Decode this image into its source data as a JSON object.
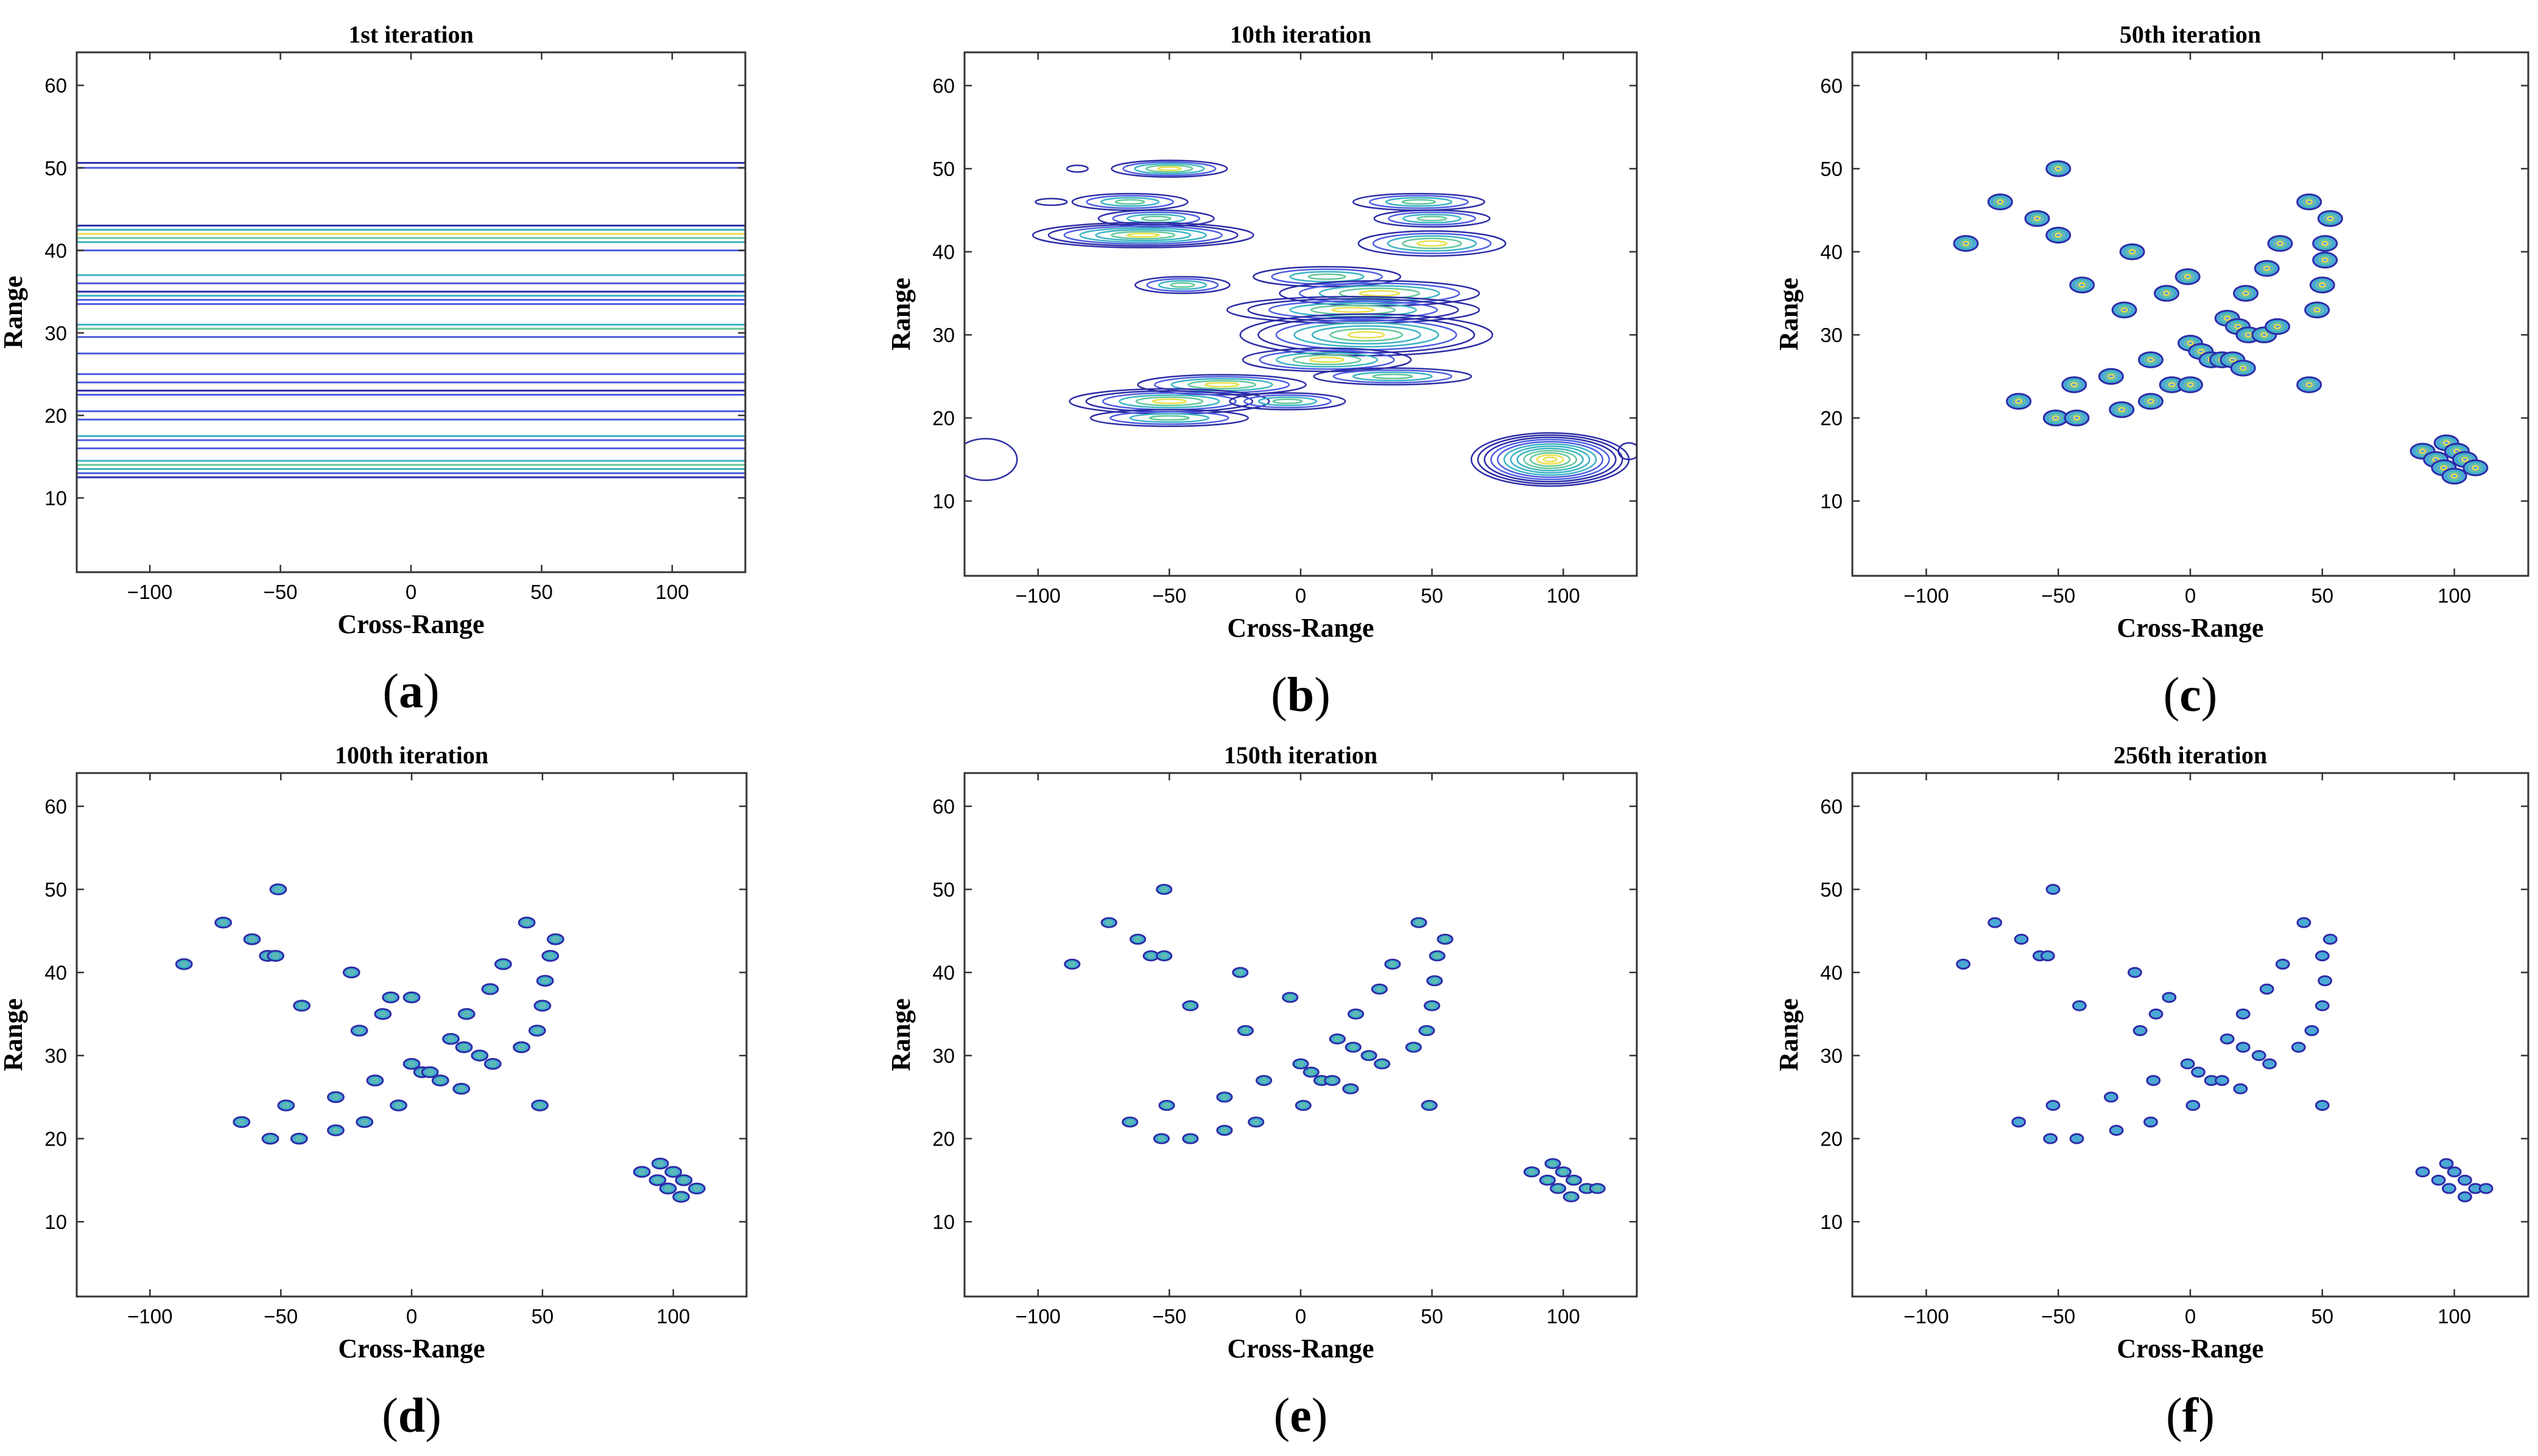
{
  "figure": {
    "x_axis_label": "Cross-Range",
    "y_axis_label": "Range",
    "x_ticks": [
      -100,
      -50,
      0,
      50,
      100
    ],
    "y_ticks": [
      10,
      20,
      30,
      40,
      50,
      60
    ],
    "xlim": [
      -128,
      128
    ],
    "ylim": [
      1,
      64
    ],
    "colors": {
      "dark": "#2c2ca6",
      "blue": "#4d5ce0",
      "teal": "#3bb3c3",
      "green": "#64c79a",
      "yellow": "#e8e04a",
      "frame": "#333333"
    }
  },
  "chart_data": [
    {
      "id": "a",
      "type": "contour",
      "title": "1st iteration",
      "caption_letter": "a",
      "xlabel": "Cross-Range",
      "ylabel": "Range",
      "xlim": [
        -128,
        128
      ],
      "ylim": [
        1,
        64
      ],
      "horizontal_lines": [
        {
          "y": 50.6,
          "c": "dark"
        },
        {
          "y": 50.0,
          "c": "blue"
        },
        {
          "y": 43.0,
          "c": "dark"
        },
        {
          "y": 42.5,
          "c": "teal"
        },
        {
          "y": 42.0,
          "c": "yellow"
        },
        {
          "y": 41.5,
          "c": "green"
        },
        {
          "y": 41.0,
          "c": "teal"
        },
        {
          "y": 40.0,
          "c": "blue"
        },
        {
          "y": 37.0,
          "c": "teal"
        },
        {
          "y": 36.0,
          "c": "blue"
        },
        {
          "y": 35.0,
          "c": "dark"
        },
        {
          "y": 34.5,
          "c": "teal"
        },
        {
          "y": 34.0,
          "c": "blue"
        },
        {
          "y": 33.5,
          "c": "blue"
        },
        {
          "y": 31.0,
          "c": "teal"
        },
        {
          "y": 30.5,
          "c": "green"
        },
        {
          "y": 29.5,
          "c": "blue"
        },
        {
          "y": 27.5,
          "c": "blue"
        },
        {
          "y": 25.0,
          "c": "blue"
        },
        {
          "y": 24.0,
          "c": "blue"
        },
        {
          "y": 23.0,
          "c": "dark"
        },
        {
          "y": 22.5,
          "c": "blue"
        },
        {
          "y": 20.5,
          "c": "blue"
        },
        {
          "y": 19.5,
          "c": "blue"
        },
        {
          "y": 17.5,
          "c": "teal"
        },
        {
          "y": 17.0,
          "c": "blue"
        },
        {
          "y": 16.0,
          "c": "blue"
        },
        {
          "y": 14.5,
          "c": "teal"
        },
        {
          "y": 14.0,
          "c": "green"
        },
        {
          "y": 13.5,
          "c": "teal"
        },
        {
          "y": 13.0,
          "c": "blue"
        },
        {
          "y": 12.5,
          "c": "dark"
        }
      ]
    },
    {
      "id": "b",
      "type": "contour",
      "title": "10th iteration",
      "caption_letter": "b",
      "xlabel": "Cross-Range",
      "ylabel": "Range",
      "xlim": [
        -128,
        128
      ],
      "ylim": [
        1,
        64
      ],
      "blobs": [
        {
          "x": -50,
          "y": 50,
          "rx": 22,
          "ry": 1.0,
          "n": 5
        },
        {
          "x": -85,
          "y": 50,
          "rx": 4,
          "ry": 0.4,
          "n": 1
        },
        {
          "x": -65,
          "y": 46,
          "rx": 22,
          "ry": 1.0,
          "n": 4
        },
        {
          "x": 45,
          "y": 46,
          "rx": 25,
          "ry": 1.0,
          "n": 4
        },
        {
          "x": -95,
          "y": 46,
          "rx": 6,
          "ry": 0.4,
          "n": 1
        },
        {
          "x": -55,
          "y": 44,
          "rx": 22,
          "ry": 1.0,
          "n": 4
        },
        {
          "x": 50,
          "y": 44,
          "rx": 22,
          "ry": 1.0,
          "n": 4
        },
        {
          "x": -60,
          "y": 42,
          "rx": 42,
          "ry": 1.5,
          "n": 7
        },
        {
          "x": 50,
          "y": 41,
          "rx": 28,
          "ry": 1.5,
          "n": 5
        },
        {
          "x": 10,
          "y": 37,
          "rx": 28,
          "ry": 1.2,
          "n": 4
        },
        {
          "x": -45,
          "y": 36,
          "rx": 18,
          "ry": 1.0,
          "n": 4
        },
        {
          "x": 30,
          "y": 35,
          "rx": 38,
          "ry": 1.5,
          "n": 5
        },
        {
          "x": 20,
          "y": 33,
          "rx": 48,
          "ry": 1.6,
          "n": 6
        },
        {
          "x": 25,
          "y": 30,
          "rx": 48,
          "ry": 2.5,
          "n": 7
        },
        {
          "x": 10,
          "y": 27,
          "rx": 32,
          "ry": 1.4,
          "n": 5
        },
        {
          "x": 35,
          "y": 25,
          "rx": 30,
          "ry": 1.0,
          "n": 4
        },
        {
          "x": -30,
          "y": 24,
          "rx": 32,
          "ry": 1.2,
          "n": 5
        },
        {
          "x": -50,
          "y": 22,
          "rx": 38,
          "ry": 1.5,
          "n": 6
        },
        {
          "x": -5,
          "y": 22,
          "rx": 22,
          "ry": 1.0,
          "n": 4
        },
        {
          "x": -50,
          "y": 20,
          "rx": 30,
          "ry": 1.0,
          "n": 4
        },
        {
          "x": 95,
          "y": 15,
          "rx": 30,
          "ry": 3.2,
          "n": 12
        },
        {
          "x": -120,
          "y": 15,
          "rx": 12,
          "ry": 2.5,
          "n": 1
        },
        {
          "x": 125,
          "y": 16,
          "rx": 4,
          "ry": 1.0,
          "n": 1
        }
      ]
    },
    {
      "id": "c",
      "type": "contour",
      "title": "50th iteration",
      "caption_letter": "c",
      "xlabel": "Cross-Range",
      "ylabel": "Range",
      "xlim": [
        -128,
        128
      ],
      "ylim": [
        1,
        64
      ],
      "blob_rx": 4.5,
      "blob_ry": 0.9,
      "levels": 4,
      "points": [
        [
          -50,
          50
        ],
        [
          -72,
          46
        ],
        [
          45,
          46
        ],
        [
          -58,
          44
        ],
        [
          53,
          44
        ],
        [
          -50,
          42
        ],
        [
          -85,
          41
        ],
        [
          34,
          41
        ],
        [
          51,
          41
        ],
        [
          -22,
          40
        ],
        [
          51,
          39
        ],
        [
          29,
          38
        ],
        [
          -1,
          37
        ],
        [
          -41,
          36
        ],
        [
          50,
          36
        ],
        [
          21,
          35
        ],
        [
          -9,
          35
        ],
        [
          48,
          33
        ],
        [
          -25,
          33
        ],
        [
          14,
          32
        ],
        [
          18,
          31
        ],
        [
          22,
          30
        ],
        [
          28,
          30
        ],
        [
          33,
          31
        ],
        [
          -15,
          27
        ],
        [
          0,
          29
        ],
        [
          4,
          28
        ],
        [
          8,
          27
        ],
        [
          12,
          27
        ],
        [
          16,
          27
        ],
        [
          20,
          26
        ],
        [
          -30,
          25
        ],
        [
          -7,
          24
        ],
        [
          0,
          24
        ],
        [
          45,
          24
        ],
        [
          -44,
          24
        ],
        [
          -65,
          22
        ],
        [
          -15,
          22
        ],
        [
          -26,
          21
        ],
        [
          -51,
          20
        ],
        [
          -43,
          20
        ],
        [
          88,
          16
        ],
        [
          93,
          15
        ],
        [
          97,
          17
        ],
        [
          101,
          16
        ],
        [
          104,
          15
        ],
        [
          108,
          14
        ],
        [
          96,
          14
        ],
        [
          100,
          13
        ]
      ]
    },
    {
      "id": "d",
      "type": "contour",
      "title": "100th iteration",
      "caption_letter": "d",
      "xlabel": "Cross-Range",
      "ylabel": "Range",
      "xlim": [
        -128,
        128
      ],
      "ylim": [
        1,
        64
      ],
      "blob_rx": 3.0,
      "blob_ry": 0.6,
      "levels": 3,
      "points": [
        [
          -51,
          50
        ],
        [
          -72,
          46
        ],
        [
          44,
          46
        ],
        [
          -61,
          44
        ],
        [
          55,
          44
        ],
        [
          -55,
          42
        ],
        [
          -52,
          42
        ],
        [
          53,
          42
        ],
        [
          -87,
          41
        ],
        [
          35,
          41
        ],
        [
          -23,
          40
        ],
        [
          51,
          39
        ],
        [
          -8,
          37
        ],
        [
          30,
          38
        ],
        [
          0,
          37
        ],
        [
          -42,
          36
        ],
        [
          50,
          36
        ],
        [
          -11,
          35
        ],
        [
          21,
          35
        ],
        [
          48,
          33
        ],
        [
          -20,
          33
        ],
        [
          15,
          32
        ],
        [
          20,
          31
        ],
        [
          26,
          30
        ],
        [
          31,
          29
        ],
        [
          42,
          31
        ],
        [
          0,
          29
        ],
        [
          4,
          28
        ],
        [
          7,
          28
        ],
        [
          11,
          27
        ],
        [
          -14,
          27
        ],
        [
          19,
          26
        ],
        [
          -29,
          25
        ],
        [
          -5,
          24
        ],
        [
          49,
          24
        ],
        [
          -48,
          24
        ],
        [
          -65,
          22
        ],
        [
          -18,
          22
        ],
        [
          -29,
          21
        ],
        [
          -54,
          20
        ],
        [
          -43,
          20
        ],
        [
          88,
          16
        ],
        [
          94,
          15
        ],
        [
          95,
          17
        ],
        [
          100,
          16
        ],
        [
          104,
          15
        ],
        [
          109,
          14
        ],
        [
          98,
          14
        ],
        [
          103,
          13
        ]
      ]
    },
    {
      "id": "e",
      "type": "contour",
      "title": "150th iteration",
      "caption_letter": "e",
      "xlabel": "Cross-Range",
      "ylabel": "Range",
      "xlim": [
        -128,
        128
      ],
      "ylim": [
        1,
        64
      ],
      "blob_rx": 2.8,
      "blob_ry": 0.55,
      "levels": 3,
      "points": [
        [
          -52,
          50
        ],
        [
          -73,
          46
        ],
        [
          45,
          46
        ],
        [
          -62,
          44
        ],
        [
          55,
          44
        ],
        [
          -57,
          42
        ],
        [
          -52,
          42
        ],
        [
          52,
          42
        ],
        [
          -87,
          41
        ],
        [
          35,
          41
        ],
        [
          -23,
          40
        ],
        [
          51,
          39
        ],
        [
          -4,
          37
        ],
        [
          30,
          38
        ],
        [
          -42,
          36
        ],
        [
          50,
          36
        ],
        [
          21,
          35
        ],
        [
          -21,
          33
        ],
        [
          48,
          33
        ],
        [
          14,
          32
        ],
        [
          20,
          31
        ],
        [
          26,
          30
        ],
        [
          31,
          29
        ],
        [
          43,
          31
        ],
        [
          0,
          29
        ],
        [
          4,
          28
        ],
        [
          8,
          27
        ],
        [
          12,
          27
        ],
        [
          -14,
          27
        ],
        [
          19,
          26
        ],
        [
          -29,
          25
        ],
        [
          -51,
          24
        ],
        [
          1,
          24
        ],
        [
          49,
          24
        ],
        [
          -65,
          22
        ],
        [
          -17,
          22
        ],
        [
          -29,
          21
        ],
        [
          -53,
          20
        ],
        [
          -42,
          20
        ],
        [
          88,
          16
        ],
        [
          94,
          15
        ],
        [
          96,
          17
        ],
        [
          100,
          16
        ],
        [
          104,
          15
        ],
        [
          109,
          14
        ],
        [
          98,
          14
        ],
        [
          103,
          13
        ],
        [
          113,
          14
        ]
      ]
    },
    {
      "id": "f",
      "type": "contour",
      "title": "256th iteration",
      "caption_letter": "f",
      "xlabel": "Cross-Range",
      "ylabel": "Range",
      "xlim": [
        -128,
        128
      ],
      "ylim": [
        1,
        64
      ],
      "blob_rx": 2.4,
      "blob_ry": 0.55,
      "levels": 2,
      "points": [
        [
          -52,
          50
        ],
        [
          -74,
          46
        ],
        [
          43,
          46
        ],
        [
          -64,
          44
        ],
        [
          53,
          44
        ],
        [
          -57,
          42
        ],
        [
          -54,
          42
        ],
        [
          50,
          42
        ],
        [
          -86,
          41
        ],
        [
          35,
          41
        ],
        [
          -21,
          40
        ],
        [
          51,
          39
        ],
        [
          -8,
          37
        ],
        [
          29,
          38
        ],
        [
          -42,
          36
        ],
        [
          50,
          36
        ],
        [
          -13,
          35
        ],
        [
          20,
          35
        ],
        [
          46,
          33
        ],
        [
          -19,
          33
        ],
        [
          14,
          32
        ],
        [
          20,
          31
        ],
        [
          26,
          30
        ],
        [
          30,
          29
        ],
        [
          41,
          31
        ],
        [
          -1,
          29
        ],
        [
          3,
          28
        ],
        [
          8,
          27
        ],
        [
          12,
          27
        ],
        [
          -14,
          27
        ],
        [
          19,
          26
        ],
        [
          -30,
          25
        ],
        [
          -52,
          24
        ],
        [
          1,
          24
        ],
        [
          50,
          24
        ],
        [
          -65,
          22
        ],
        [
          -15,
          22
        ],
        [
          -28,
          21
        ],
        [
          -53,
          20
        ],
        [
          -43,
          20
        ],
        [
          88,
          16
        ],
        [
          94,
          15
        ],
        [
          97,
          17
        ],
        [
          100,
          16
        ],
        [
          104,
          15
        ],
        [
          108,
          14
        ],
        [
          98,
          14
        ],
        [
          104,
          13
        ],
        [
          112,
          14
        ]
      ]
    }
  ]
}
